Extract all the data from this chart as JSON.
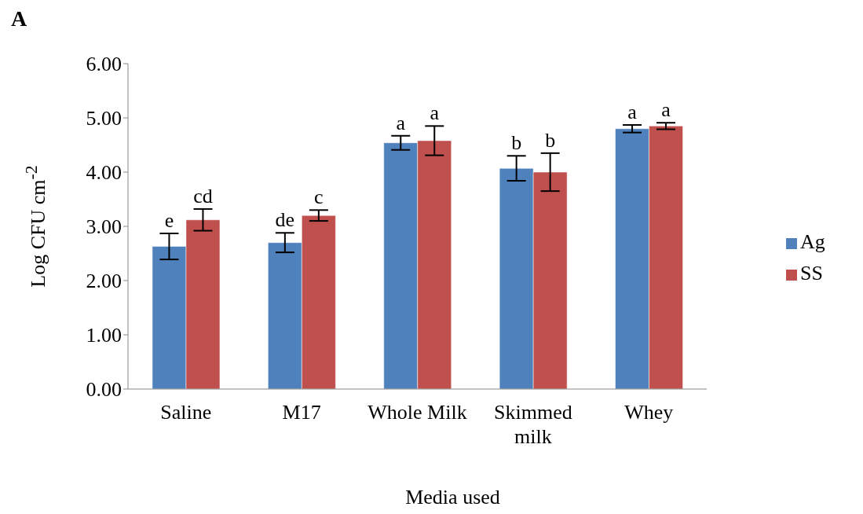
{
  "chart_data": {
    "type": "bar",
    "title": "A",
    "xlabel": "Media used",
    "ylabel": "Log CFU cm$^{-2}$",
    "categories": [
      "Saline",
      "M17",
      "Whole Milk",
      "Skimmed milk",
      "Whey"
    ],
    "series": [
      {
        "name": "Ag",
        "color": "#4f81bd",
        "values": [
          2.63,
          2.7,
          4.54,
          4.07,
          4.8
        ],
        "errors": [
          0.24,
          0.18,
          0.13,
          0.23,
          0.07
        ],
        "value_labels": [
          "e",
          "de",
          "a",
          "b",
          "a"
        ]
      },
      {
        "name": "SS",
        "color": "#c0504d",
        "values": [
          3.12,
          3.2,
          4.58,
          4.0,
          4.85
        ],
        "errors": [
          0.2,
          0.1,
          0.27,
          0.35,
          0.06
        ],
        "value_labels": [
          "cd",
          "c",
          "a",
          "b",
          "a"
        ]
      }
    ],
    "ylim": [
      0,
      6
    ],
    "yticks": [
      {
        "value": 0,
        "label": "0.00"
      },
      {
        "value": 1,
        "label": "1.00"
      },
      {
        "value": 2,
        "label": "2.00"
      },
      {
        "value": 3,
        "label": "3.00"
      },
      {
        "value": 4,
        "label": "4.00"
      },
      {
        "value": 5,
        "label": "5.00"
      },
      {
        "value": 6,
        "label": "6.00"
      }
    ],
    "grid": false,
    "legend": "right"
  }
}
